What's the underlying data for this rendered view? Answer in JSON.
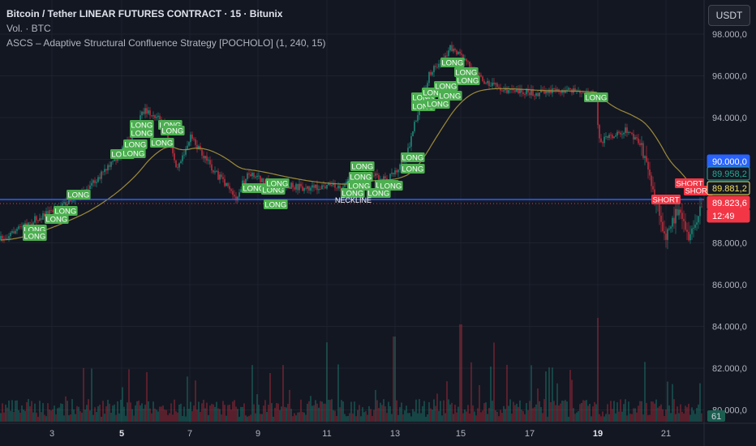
{
  "header": {
    "title": "Bitcoin / Tether LINEAR FUTURES CONTRACT · 15 · Bitunix",
    "volume_line": "Vol. · BTC",
    "indicator_line": "ASCS – Adaptive Structural Confluence Strategy [POCHOLO] (1, 240, 15)"
  },
  "currency_button": "USDT",
  "price_axis": {
    "ticks": [
      "98.000,0",
      "96.000,0",
      "94.000,0",
      "92.000,0",
      "90.000,0",
      "88.000,0",
      "86.000,0",
      "84.000,0",
      "82.000,0",
      "80.000,0"
    ]
  },
  "price_tags": [
    {
      "label": "90.000,0",
      "color": "#2962ff",
      "text_color": "#ffffff",
      "price": 90000
    },
    {
      "label": "89.958,2",
      "color": "#131722",
      "text_color": "#22ab94",
      "border": "#22ab94",
      "price": 89958.2
    },
    {
      "label": "89.881,2",
      "color": "#131722",
      "text_color": "#f7e35b",
      "border": "#f7e35b",
      "price": 89881.2
    },
    {
      "label": "89.823,6",
      "color": "#f23645",
      "text_color": "#ffffff",
      "price": 89823.6
    },
    {
      "label": "12:49",
      "color": "#f23645",
      "text_color": "#ffffff",
      "price": 89500
    }
  ],
  "volume_tag": "61",
  "time_axis": {
    "labels": [
      {
        "text": "3",
        "bold": false
      },
      {
        "text": "5",
        "bold": true
      },
      {
        "text": "7",
        "bold": false
      },
      {
        "text": "9",
        "bold": false
      },
      {
        "text": "11",
        "bold": false
      },
      {
        "text": "13",
        "bold": false
      },
      {
        "text": "15",
        "bold": false
      },
      {
        "text": "17",
        "bold": false
      },
      {
        "text": "19",
        "bold": true
      },
      {
        "text": "21",
        "bold": false
      }
    ]
  },
  "signals": {
    "long_label": "LONG",
    "short_label": "SHORT",
    "neckline_label": "NECKLINE",
    "colors": {
      "long": "#4caf50",
      "short": "#f23645"
    }
  },
  "colors": {
    "background": "#131722",
    "grid": "#1e222d",
    "up": "#22ab94",
    "down": "#f23645",
    "ma": "#9c8a3a",
    "hline": "#2962ff"
  }
}
